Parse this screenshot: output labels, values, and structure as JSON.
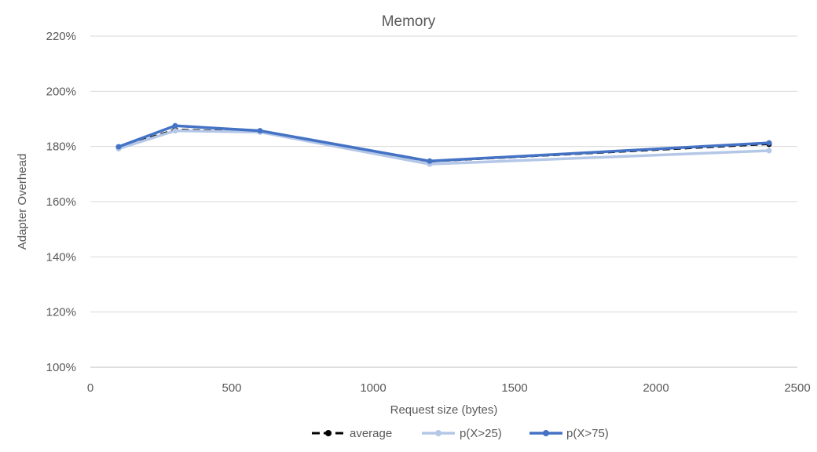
{
  "chart_data": {
    "type": "line",
    "title": "Memory",
    "xlabel": "Request size (bytes)",
    "ylabel": "Adapter Overhead",
    "xlim": [
      0,
      2500
    ],
    "ylim": [
      100,
      220
    ],
    "x_ticks": [
      0,
      500,
      1000,
      1500,
      2000,
      2500
    ],
    "x_tick_labels": [
      "0",
      "500",
      "1000",
      "1500",
      "2000",
      "2500"
    ],
    "y_ticks": [
      100,
      120,
      140,
      160,
      180,
      200,
      220
    ],
    "y_tick_labels": [
      "100%",
      "120%",
      "140%",
      "160%",
      "180%",
      "200%",
      "220%"
    ],
    "grid": true,
    "legend_position": "bottom",
    "x": [
      100,
      300,
      600,
      1200,
      2400
    ],
    "series": [
      {
        "name": "average",
        "values": [
          179.7,
          186.2,
          185.4,
          174.5,
          180.8
        ],
        "color": "#000000",
        "style": "dashed"
      },
      {
        "name": "p(X>25)",
        "values": [
          179.2,
          185.7,
          185.2,
          173.6,
          178.5
        ],
        "color": "#B4C7E7",
        "style": "solid"
      },
      {
        "name": "p(X>75)",
        "values": [
          179.9,
          187.5,
          185.7,
          174.7,
          181.3
        ],
        "color": "#4472C4",
        "style": "solid"
      }
    ]
  }
}
